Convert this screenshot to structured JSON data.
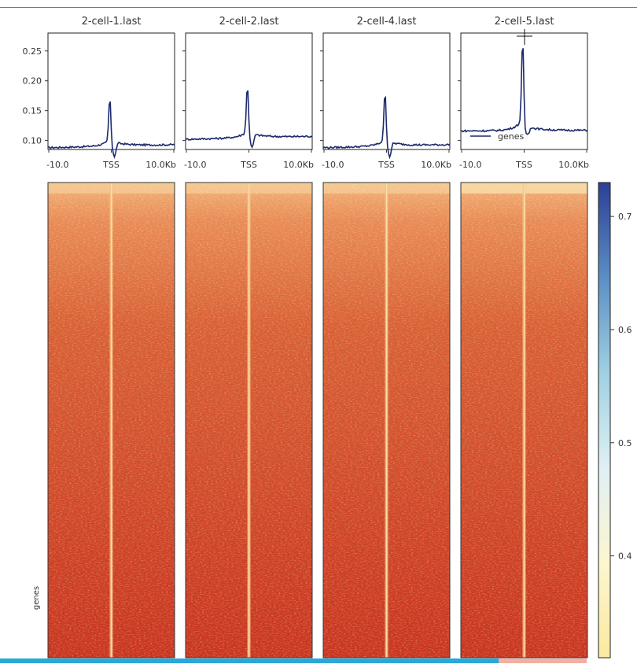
{
  "chart_data": {
    "type": "heatmap",
    "panels": [
      {
        "title": "2-cell-1.last"
      },
      {
        "title": "2-cell-2.last"
      },
      {
        "title": "2-cell-4.last"
      },
      {
        "title": "2-cell-5.last"
      }
    ],
    "profile": {
      "type": "line",
      "x_ticks": [
        "-10.0",
        "TSS",
        "10.0Kb"
      ],
      "y_ticks": [
        "0.10",
        "0.15",
        "0.20",
        "0.25"
      ],
      "ylim": [
        0.085,
        0.28
      ],
      "legend": {
        "label": "genes",
        "location": "lower-center",
        "panel": 4
      },
      "series": [
        {
          "panel": 1,
          "baseline_left": 0.088,
          "baseline_right": 0.093,
          "peak": 0.17,
          "dip": 0.073
        },
        {
          "panel": 2,
          "baseline_left": 0.102,
          "baseline_right": 0.107,
          "peak": 0.19,
          "dip": 0.088
        },
        {
          "panel": 3,
          "baseline_left": 0.088,
          "baseline_right": 0.093,
          "peak": 0.18,
          "dip": 0.073
        },
        {
          "panel": 4,
          "baseline_left": 0.116,
          "baseline_right": 0.117,
          "peak": 0.265,
          "dip": 0.11
        }
      ],
      "line_color": "#1b2a6b"
    },
    "heatmap": {
      "ylabel": "genes",
      "colormap": "RdYlBu",
      "low_color": "#c8331f",
      "mid_color": "#f6e39a",
      "high_color": "#2c3f96"
    },
    "colorbar": {
      "ticks": [
        "0.7",
        "0.6",
        "0.5",
        "0.4"
      ],
      "range": [
        0.31,
        0.73
      ]
    }
  }
}
